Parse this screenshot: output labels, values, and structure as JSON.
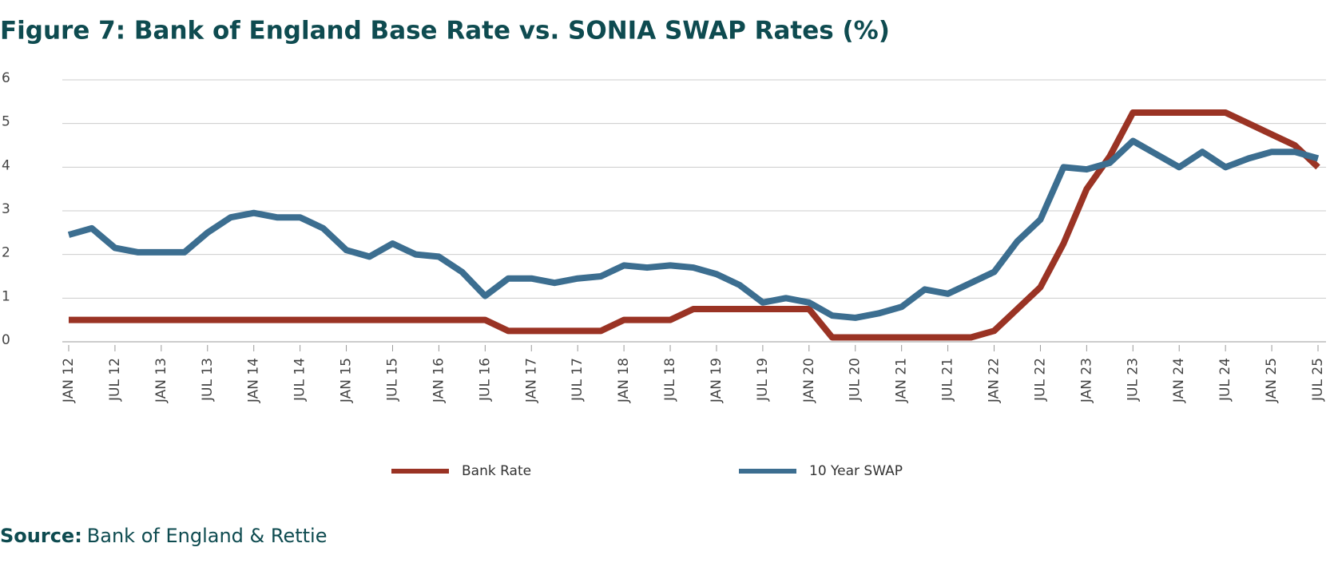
{
  "chart_data": {
    "type": "line",
    "title": "Figure 7: Bank of England Base Rate vs. SONIA SWAP Rates (%)",
    "source_label": "Source:",
    "source": "Bank of England & Rettie",
    "categories": [
      "JAN 12",
      null,
      "JUL 12",
      null,
      "JAN 13",
      null,
      "JUL 13",
      null,
      "JAN 14",
      null,
      "JUL 14",
      null,
      "JAN 15",
      null,
      "JUL 15",
      null,
      "JAN 16",
      null,
      "JUL 16",
      null,
      "JAN 17",
      null,
      "JUL 17",
      null,
      "JAN 18",
      null,
      "JUL 18",
      null,
      "JAN 19",
      null,
      "JUL 19",
      null,
      "JAN 20",
      null,
      "JUL 20",
      null,
      "JAN 21",
      null,
      "JUL 21",
      null,
      "JAN 22",
      null,
      "JUL 22",
      null,
      "JAN 23",
      null,
      "JUL 23",
      null,
      "JAN 24",
      null,
      "JUL 24",
      null,
      "JAN 25",
      null,
      "JUL 25"
    ],
    "series": [
      {
        "name": "Bank Rate",
        "color": "#9a3324",
        "values": [
          0.5,
          0.5,
          0.5,
          0.5,
          0.5,
          0.5,
          0.5,
          0.5,
          0.5,
          0.5,
          0.5,
          0.5,
          0.5,
          0.5,
          0.5,
          0.5,
          0.5,
          0.5,
          0.5,
          0.25,
          0.25,
          0.25,
          0.25,
          0.25,
          0.5,
          0.5,
          0.5,
          0.75,
          0.75,
          0.75,
          0.75,
          0.75,
          0.75,
          0.1,
          0.1,
          0.1,
          0.1,
          0.1,
          0.1,
          0.1,
          0.25,
          0.75,
          1.25,
          2.25,
          3.5,
          4.25,
          5.25,
          5.25,
          5.25,
          5.25,
          5.25,
          5.0,
          4.75,
          4.5,
          4.0
        ]
      },
      {
        "name": "10 Year SWAP",
        "color": "#3c6e90",
        "values": [
          2.45,
          2.6,
          2.15,
          2.05,
          2.05,
          2.05,
          2.5,
          2.85,
          2.95,
          2.85,
          2.85,
          2.6,
          2.1,
          1.95,
          2.25,
          2.0,
          1.95,
          1.6,
          1.05,
          1.45,
          1.45,
          1.35,
          1.45,
          1.5,
          1.75,
          1.7,
          1.75,
          1.7,
          1.55,
          1.3,
          0.9,
          1.0,
          0.9,
          0.6,
          0.55,
          0.65,
          0.8,
          1.2,
          1.1,
          1.35,
          1.6,
          2.3,
          2.8,
          4.0,
          3.95,
          4.1,
          4.6,
          4.3,
          4.0,
          4.35,
          4.0,
          4.2,
          4.35,
          4.35,
          4.2
        ]
      }
    ],
    "ylim": [
      0,
      6
    ],
    "yticks": [
      0,
      1,
      2,
      3,
      4,
      5,
      6
    ],
    "grid": true,
    "legend": "bottom"
  }
}
